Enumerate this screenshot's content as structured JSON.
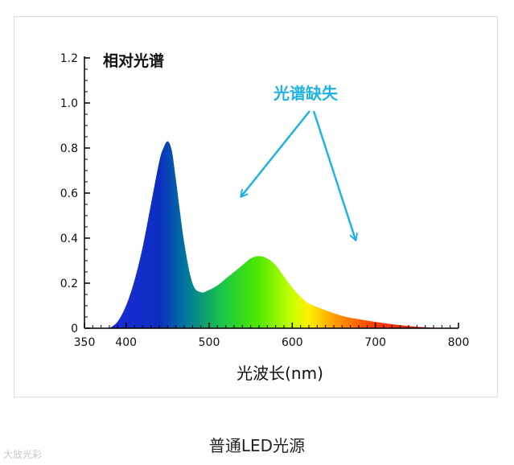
{
  "chart_data": {
    "type": "area",
    "title": "相对光谱",
    "xlabel": "光波长(nm)",
    "ylabel": "",
    "xlim": [
      350,
      800
    ],
    "ylim": [
      0,
      1.2
    ],
    "x_ticks": [
      350,
      400,
      500,
      600,
      700,
      800
    ],
    "y_ticks": [
      "0",
      "0.2",
      "0.4",
      "0.6",
      "0.8",
      "1.0",
      "1.2"
    ],
    "x": [
      380,
      390,
      400,
      410,
      420,
      430,
      440,
      445,
      450,
      455,
      460,
      470,
      480,
      490,
      500,
      510,
      520,
      530,
      540,
      550,
      560,
      570,
      580,
      590,
      600,
      610,
      620,
      640,
      660,
      680,
      700,
      720,
      740,
      760,
      780
    ],
    "y": [
      0.0,
      0.03,
      0.1,
      0.21,
      0.36,
      0.55,
      0.74,
      0.8,
      0.83,
      0.79,
      0.66,
      0.38,
      0.2,
      0.16,
      0.17,
      0.19,
      0.22,
      0.25,
      0.28,
      0.31,
      0.32,
      0.31,
      0.28,
      0.23,
      0.18,
      0.14,
      0.11,
      0.08,
      0.055,
      0.04,
      0.028,
      0.018,
      0.01,
      0.004,
      0.0
    ],
    "annotation": "光谱缺失",
    "annotation_color": "#1fb3e3",
    "grid": false
  },
  "caption": "普通LED光源",
  "watermark": "大放光彩"
}
